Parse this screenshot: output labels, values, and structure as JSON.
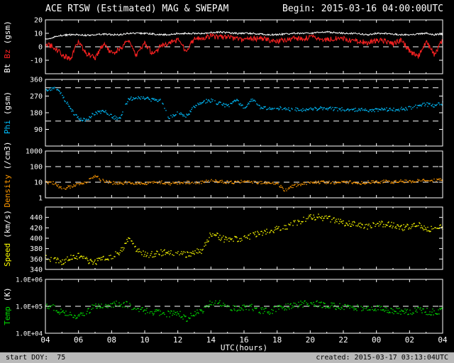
{
  "header": {
    "title": "ACE RTSW (Estimated) MAG & SWEPAM",
    "begin": "Begin: 2015-03-16 04:00:00UTC"
  },
  "footer": {
    "left": "start DOY:  75",
    "right": "created: 2015-03-17 03:13:04UTC"
  },
  "xaxis": {
    "label": "UTC(hours)",
    "range": [
      4,
      28
    ],
    "tick_hours": [
      4,
      6,
      8,
      10,
      12,
      14,
      16,
      18,
      20,
      22,
      24,
      26,
      28
    ],
    "tick_labels": [
      "04",
      "06",
      "08",
      "10",
      "12",
      "14",
      "16",
      "18",
      "20",
      "22",
      "00",
      "02",
      "04"
    ]
  },
  "chart_data": [
    {
      "id": "bt-bz",
      "type": "line",
      "scale": "linear",
      "ylim": [
        -20,
        20
      ],
      "yticks": {
        "values": [
          20,
          10,
          0,
          -10
        ],
        "labels": [
          "20",
          "10",
          "0",
          "-10"
        ]
      },
      "ytick_font": 10,
      "dashed": [
        0
      ],
      "ylabel_parts": [
        {
          "text": "Bt",
          "color": "#ffffff"
        },
        {
          "text": "Bz",
          "color": "#ff2222"
        },
        {
          "text": "(gsm)",
          "color": "#ffffff"
        }
      ],
      "x_start": 4,
      "x_step": 0.5,
      "series": [
        {
          "name": "Bt",
          "color": "#ffffff",
          "style": "line",
          "noise": 0.6,
          "values": [
            5.5,
            7,
            8.5,
            9,
            9,
            8.5,
            9,
            9.5,
            9,
            9,
            10,
            10,
            10,
            9.5,
            9,
            9,
            10,
            10,
            10,
            10,
            10.5,
            11,
            10.5,
            10,
            10,
            10,
            9.5,
            9,
            9,
            9.5,
            10,
            10,
            10,
            10.5,
            11,
            10.5,
            10,
            10,
            9.5,
            9,
            10,
            10,
            9.5,
            9,
            9,
            9.5,
            10,
            9,
            9.5
          ]
        },
        {
          "name": "Bz",
          "color": "#ff2222",
          "style": "line",
          "noise": 2.0,
          "values": [
            2,
            0,
            -6,
            -9,
            4,
            -5,
            -8,
            2,
            -5,
            -2,
            5,
            -7,
            3,
            -6,
            1,
            3,
            5,
            -3,
            6,
            7,
            8,
            7,
            7,
            6,
            5,
            6,
            6,
            5,
            4,
            5,
            6,
            6,
            7,
            7,
            5,
            6,
            6,
            5,
            4,
            3,
            5,
            4,
            2,
            5,
            -3,
            -8,
            4,
            -6,
            5
          ]
        }
      ]
    },
    {
      "id": "phi",
      "type": "scatter",
      "scale": "linear",
      "ylim": [
        0,
        360
      ],
      "yticks": {
        "values": [
          360,
          270,
          180,
          90
        ],
        "labels": [
          "360",
          "270",
          "180",
          "90"
        ]
      },
      "ytick_font": 10,
      "dashed": [
        135,
        315
      ],
      "ylabel_parts": [
        {
          "text": "Phi",
          "color": "#00bfff"
        },
        {
          "text": "(gsm)",
          "color": "#ffffff"
        }
      ],
      "x_start": 4,
      "x_step": 0.5,
      "series": [
        {
          "name": "Phi",
          "color": "#00bfff",
          "style": "dots",
          "noise": 10,
          "values": [
            300,
            315,
            280,
            200,
            150,
            140,
            180,
            190,
            160,
            145,
            250,
            265,
            260,
            250,
            245,
            150,
            185,
            160,
            210,
            240,
            245,
            230,
            215,
            250,
            205,
            250,
            210,
            200,
            205,
            200,
            198,
            196,
            200,
            202,
            205,
            200,
            198,
            196,
            195,
            192,
            195,
            200,
            195,
            200,
            205,
            215,
            225,
            220,
            230
          ]
        }
      ]
    },
    {
      "id": "density",
      "type": "scatter",
      "scale": "log",
      "ylim": [
        1,
        1000
      ],
      "yticks": {
        "values": [
          1000,
          100,
          10,
          1
        ],
        "labels": [
          "1000",
          "100",
          "10",
          "1"
        ]
      },
      "ytick_font": 10,
      "dashed": [
        100,
        10
      ],
      "ylabel_parts": [
        {
          "text": "Density",
          "color": "#ff9900"
        },
        {
          "text": "(/cm3)",
          "color": "#ffffff"
        }
      ],
      "x_start": 4,
      "x_step": 0.5,
      "series": [
        {
          "name": "Density",
          "color": "#ff9900",
          "style": "dots",
          "noise": 0.1,
          "values": [
            10,
            9,
            4,
            5,
            8,
            10,
            25,
            12,
            9,
            8,
            10,
            9,
            8,
            9,
            10,
            8,
            9,
            10,
            9,
            10,
            12,
            11,
            10,
            10,
            11,
            10,
            10,
            9,
            8,
            3,
            6,
            8,
            9,
            10,
            10,
            9,
            10,
            10,
            9,
            10,
            10,
            11,
            10,
            12,
            11,
            13,
            12,
            14,
            15
          ]
        }
      ]
    },
    {
      "id": "speed",
      "type": "scatter",
      "scale": "linear",
      "ylim": [
        340,
        460
      ],
      "yticks": {
        "values": [
          440,
          420,
          400,
          380,
          360,
          340
        ],
        "labels": [
          "440",
          "420",
          "400",
          "380",
          "360",
          "340"
        ]
      },
      "ytick_font": 10,
      "dashed": [],
      "ylabel_parts": [
        {
          "text": "Speed",
          "color": "#ffff00"
        },
        {
          "text": "(km/s)",
          "color": "#ffffff"
        }
      ],
      "x_start": 4,
      "x_step": 0.5,
      "series": [
        {
          "name": "Speed",
          "color": "#ffff00",
          "style": "dots",
          "noise": 6,
          "values": [
            365,
            358,
            355,
            362,
            366,
            358,
            354,
            360,
            366,
            372,
            398,
            378,
            370,
            368,
            372,
            374,
            370,
            368,
            373,
            376,
            410,
            402,
            396,
            398,
            400,
            406,
            410,
            414,
            418,
            422,
            428,
            433,
            440,
            442,
            438,
            434,
            430,
            428,
            426,
            423,
            426,
            428,
            424,
            420,
            422,
            426,
            420,
            417,
            421
          ]
        }
      ]
    },
    {
      "id": "temp",
      "type": "scatter",
      "scale": "log",
      "ylim": [
        10000,
        1000000
      ],
      "yticks": {
        "values": [
          1000000,
          100000,
          10000
        ],
        "labels": [
          "1.0E+06",
          "1.0E+05",
          "1.0E+04"
        ]
      },
      "ytick_font": 9,
      "dashed": [
        100000
      ],
      "ylabel_parts": [
        {
          "text": "Temp",
          "color": "#00dd00"
        },
        {
          "text": "(K)",
          "color": "#ffffff"
        }
      ],
      "x_start": 4,
      "x_step": 0.5,
      "series": [
        {
          "name": "Temp",
          "color": "#00dd00",
          "style": "dots",
          "noise": 0.12,
          "values": [
            100000,
            90000,
            60000,
            50000,
            40000,
            60000,
            110000,
            90000,
            120000,
            130000,
            110000,
            80000,
            70000,
            60000,
            55000,
            50000,
            60000,
            35000,
            50000,
            70000,
            150000,
            130000,
            90000,
            80000,
            85000,
            90000,
            70000,
            65000,
            80000,
            90000,
            110000,
            120000,
            130000,
            120000,
            110000,
            100000,
            95000,
            90000,
            85000,
            80000,
            85000,
            80000,
            70000,
            65000,
            60000,
            70000,
            65000,
            60000,
            70000
          ]
        }
      ]
    }
  ]
}
